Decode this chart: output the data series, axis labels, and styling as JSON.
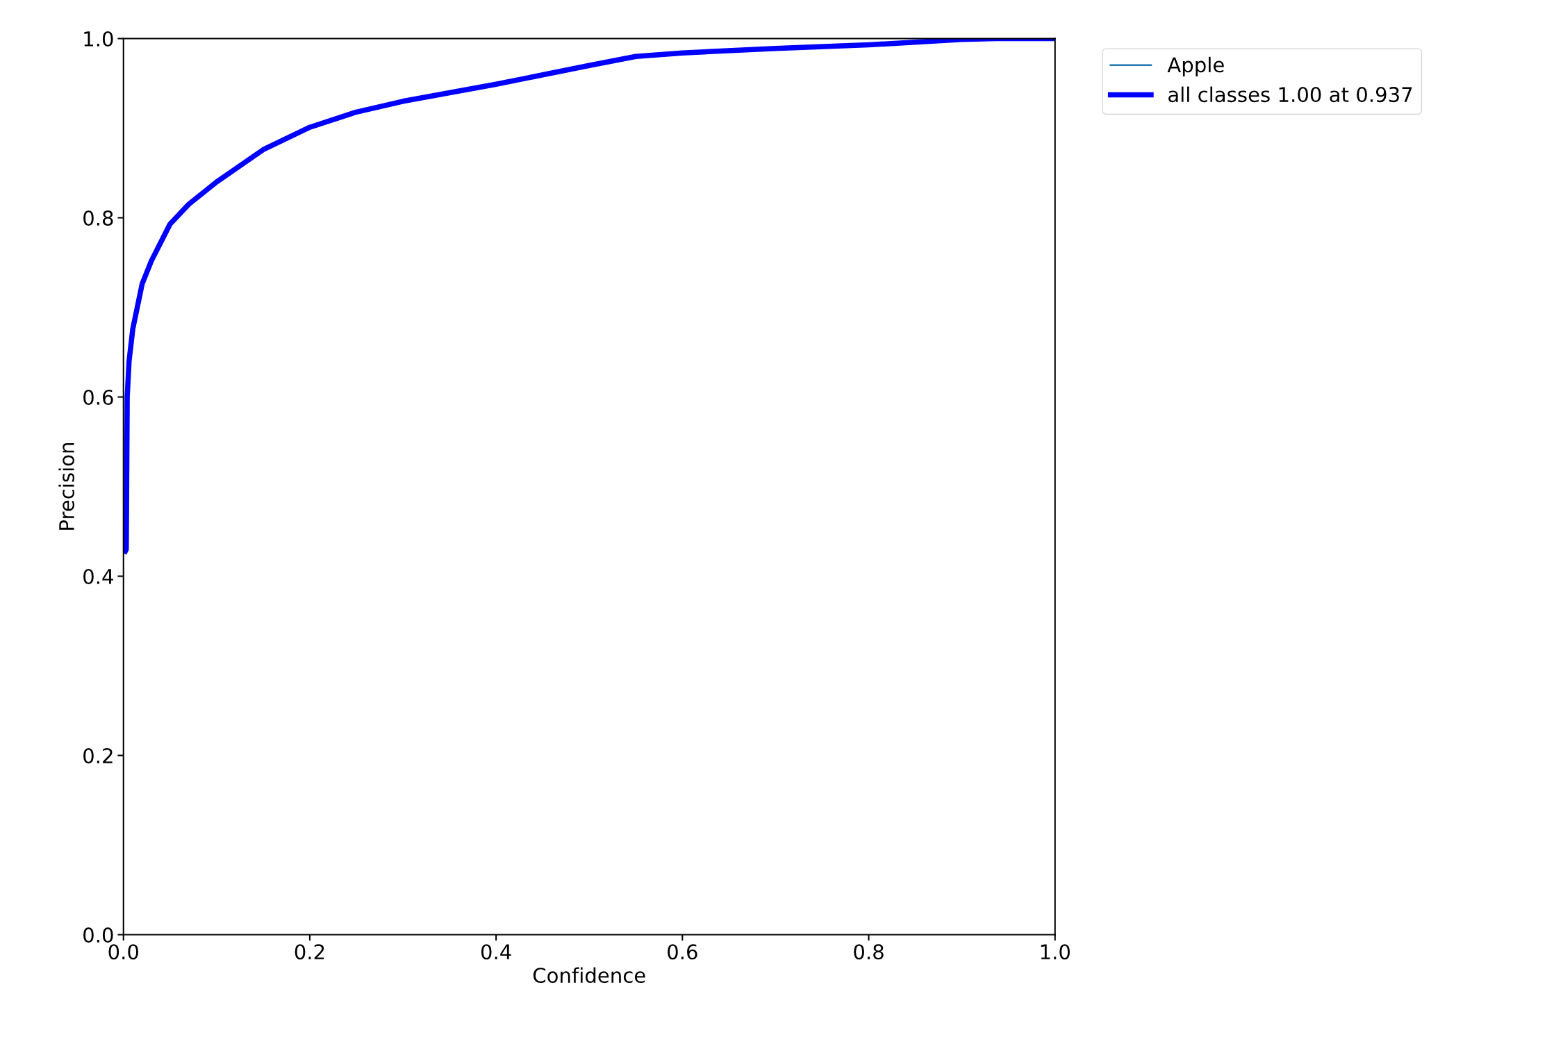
{
  "chart_data": {
    "type": "line",
    "xlabel": "Confidence",
    "ylabel": "Precision",
    "xlim": [
      0,
      1
    ],
    "ylim": [
      0,
      1
    ],
    "xticks": [
      {
        "value": 0,
        "label": "0.0"
      },
      0.2,
      0.4,
      0.6,
      0.8,
      {
        "value": 1,
        "label": "1.0"
      }
    ],
    "yticks": [
      {
        "value": 0,
        "label": "0.0"
      },
      0.2,
      0.4,
      0.6,
      0.8,
      {
        "value": 1,
        "label": "1.0"
      }
    ],
    "x": [
      0.002,
      0.003,
      0.004,
      0.006,
      0.01,
      0.02,
      0.03,
      0.05,
      0.07,
      0.1,
      0.15,
      0.2,
      0.25,
      0.3,
      0.4,
      0.5,
      0.55,
      0.6,
      0.7,
      0.8,
      0.9,
      0.937,
      1.0
    ],
    "series": [
      {
        "name": "Apple",
        "color": "#1f77b4",
        "values": [
          null,
          null,
          null,
          null,
          null,
          null,
          null,
          null,
          null,
          null,
          null,
          null,
          null,
          null,
          null,
          null,
          null,
          null,
          null,
          null,
          null,
          null,
          null
        ]
      },
      {
        "name": "all classes 1.00 at 0.937",
        "color": "#0000ff",
        "values": [
          0.428,
          0.43,
          0.6,
          0.64,
          0.676,
          0.726,
          0.752,
          0.793,
          0.815,
          0.84,
          0.876,
          0.901,
          0.918,
          0.93,
          0.949,
          0.97,
          0.98,
          0.984,
          0.989,
          0.993,
          0.999,
          1.0,
          1.0
        ]
      }
    ],
    "legend": "top right",
    "grid": false
  }
}
